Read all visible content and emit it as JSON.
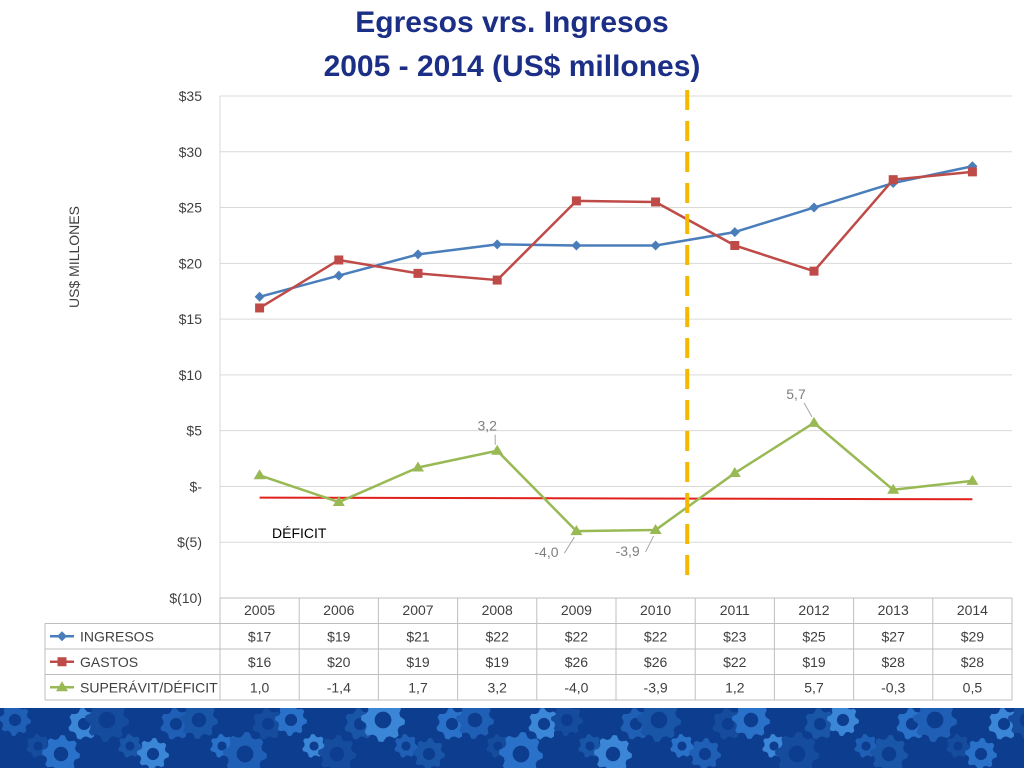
{
  "title_line1": "Egresos vrs. Ingresos",
  "title_line2": "2005 - 2014 (US$ millones)",
  "colors": {
    "title": "#1c2f86",
    "ingresos": "#4a7ebb",
    "gastos": "#be4b48",
    "superavit": "#98b954",
    "deficit_line": "#e0201b",
    "divider": "#f5b800",
    "banner": "#0d3d8f"
  },
  "chart_data": {
    "type": "line",
    "title": "Egresos vrs. Ingresos 2005 - 2014 (US$ millones)",
    "ylabel": "US$ MILLONES",
    "xlabel": "",
    "ylim": [
      -10,
      35
    ],
    "y_ticks": [
      35,
      30,
      25,
      20,
      15,
      10,
      5,
      0,
      -5,
      -10
    ],
    "y_tick_labels": [
      "$35",
      "$30",
      "$25",
      "$20",
      "$15",
      "$10",
      "$5",
      "$-",
      "$(5)",
      "$(10)"
    ],
    "grid": "horizontal",
    "legend": "data-table",
    "categories": [
      "2005",
      "2006",
      "2007",
      "2008",
      "2009",
      "2010",
      "2011",
      "2012",
      "2013",
      "2014"
    ],
    "series": [
      {
        "name": "INGRESOS",
        "marker": "diamond",
        "values": [
          17.0,
          18.9,
          20.8,
          21.7,
          21.6,
          21.6,
          22.8,
          25.0,
          27.2,
          28.7
        ],
        "table_labels": [
          "$17",
          "$19",
          "$21",
          "$22",
          "$22",
          "$22",
          "$23",
          "$25",
          "$27",
          "$29"
        ]
      },
      {
        "name": "GASTOS",
        "marker": "square",
        "values": [
          16.0,
          20.3,
          19.1,
          18.5,
          25.6,
          25.5,
          21.6,
          19.3,
          27.5,
          28.2
        ],
        "table_labels": [
          "$16",
          "$20",
          "$19",
          "$19",
          "$26",
          "$26",
          "$22",
          "$19",
          "$28",
          "$28"
        ]
      },
      {
        "name": "SUPERÁVIT/DÉFICIT",
        "marker": "triangle",
        "values": [
          1.0,
          -1.4,
          1.7,
          3.2,
          -4.0,
          -3.9,
          1.2,
          5.7,
          -0.3,
          0.5
        ],
        "table_labels": [
          "1,0",
          "-1,4",
          "1,7",
          "3,2",
          "-4,0",
          "-3,9",
          "1,2",
          "5,7",
          "-0,3",
          "0,5"
        ]
      }
    ],
    "annotations": [
      {
        "series": 2,
        "index": 3,
        "text": "3,2",
        "dx": -10,
        "dy": -20
      },
      {
        "series": 2,
        "index": 4,
        "text": "-4,0",
        "dx": -42,
        "dy": 26
      },
      {
        "series": 2,
        "index": 5,
        "text": "-3,9",
        "dx": -40,
        "dy": 26
      },
      {
        "series": 2,
        "index": 7,
        "text": "5,7",
        "dx": -18,
        "dy": -24
      }
    ],
    "deficit_line": {
      "label": "DÉFICIT",
      "from_value": -1.0,
      "to_value": -1.15
    },
    "divider_between": [
      "2010",
      "2011"
    ]
  }
}
